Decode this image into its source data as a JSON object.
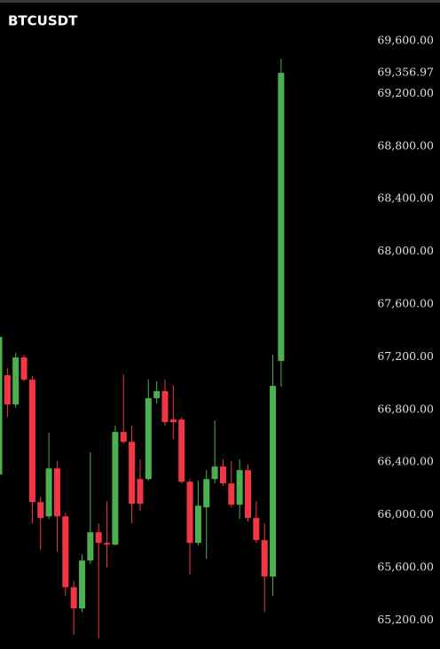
{
  "chart_data": {
    "type": "candlestick",
    "title": "BTCUSDT",
    "open": [
      66305,
      67060,
      66837,
      67195,
      67026,
      66096,
      65988,
      66352,
      65988,
      65449,
      65288,
      65652,
      65867,
      65786,
      65773,
      66629,
      66554,
      66271,
      66271,
      66885,
      66939,
      66723,
      66723,
      66251,
      65786,
      66056,
      66271,
      66366,
      66238,
      66076,
      66339,
      65975,
      65807,
      65530,
      67168
    ],
    "high": [
      67380,
      67114,
      67228,
      67215,
      67053,
      66137,
      66622,
      66406,
      66015,
      65497,
      65699,
      66474,
      65935,
      66103,
      66676,
      67067,
      66676,
      66420,
      67026,
      67013,
      67026,
      66986,
      66743,
      66271,
      66258,
      66339,
      66716,
      66420,
      66406,
      66420,
      66379,
      66103,
      65935,
      67215,
      69465
    ],
    "low": [
      66260,
      66743,
      66811,
      67013,
      65935,
      65732,
      65968,
      65719,
      65382,
      65086,
      65261,
      65625,
      65059,
      65598,
      65766,
      66541,
      65935,
      66029,
      66258,
      66844,
      66676,
      66575,
      66238,
      65544,
      65766,
      65665,
      66238,
      66218,
      66056,
      65968,
      65948,
      65786,
      65261,
      65382,
      66972
    ],
    "close": [
      67350,
      66837,
      67195,
      67026,
      66096,
      65975,
      66352,
      65988,
      65449,
      65288,
      65652,
      65867,
      65786,
      65773,
      66629,
      66554,
      66083,
      66083,
      66885,
      66939,
      66703,
      66703,
      66251,
      65786,
      66069,
      66271,
      66366,
      66238,
      66076,
      66339,
      65975,
      65807,
      65530,
      66979,
      69357
    ],
    "up_color": "#4caf50",
    "down_color": "#f23645",
    "last_price": {
      "value": 69356.97,
      "label": "69,356.97"
    },
    "ylim": [
      64980,
      69910
    ],
    "yticks": [
      {
        "value": 69600,
        "label": "69,600.00"
      },
      {
        "value": 69200,
        "label": "69,200.00"
      },
      {
        "value": 68800,
        "label": "68,800.00"
      },
      {
        "value": 68400,
        "label": "68,400.00"
      },
      {
        "value": 68000,
        "label": "68,000.00"
      },
      {
        "value": 67600,
        "label": "67,600.00"
      },
      {
        "value": 67200,
        "label": "67,200.00"
      },
      {
        "value": 66800,
        "label": "66,800.00"
      },
      {
        "value": 66400,
        "label": "66,400.00"
      },
      {
        "value": 66000,
        "label": "66,000.00"
      },
      {
        "value": 65600,
        "label": "65,600.00"
      },
      {
        "value": 65200,
        "label": "65,200.00"
      }
    ]
  }
}
